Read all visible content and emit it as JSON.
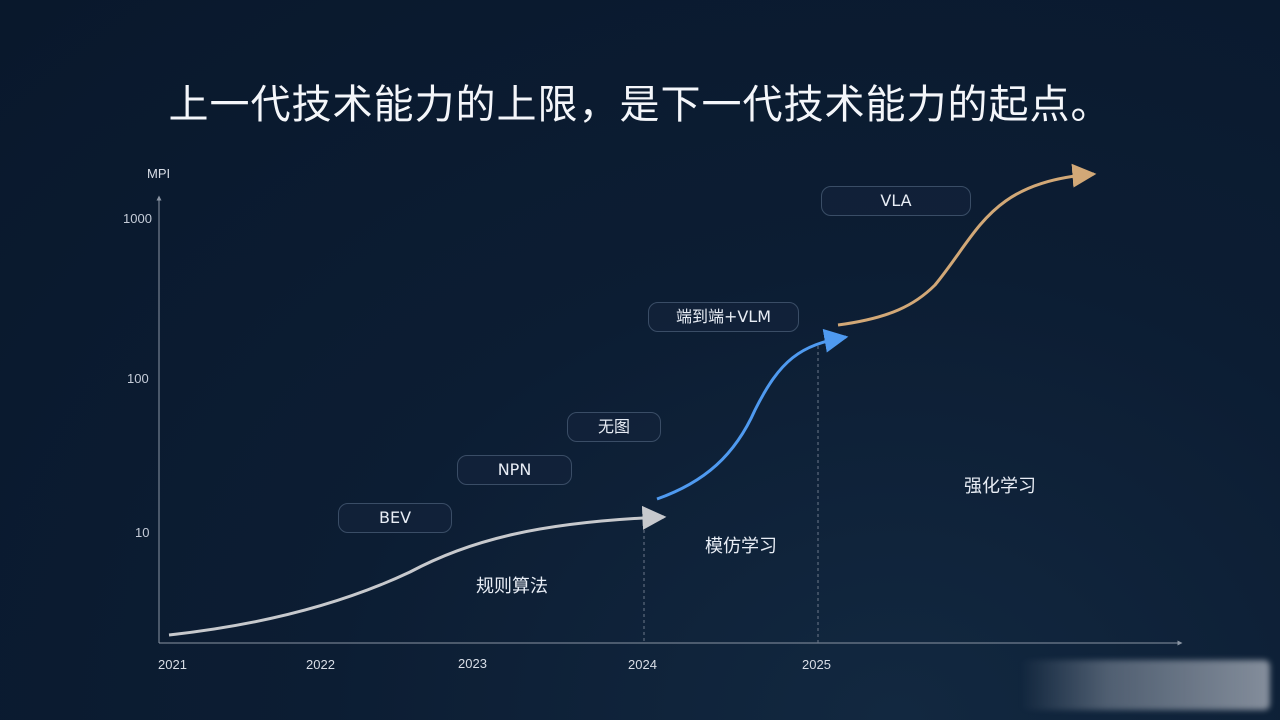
{
  "title": "上一代技术能力的上限，是下一代技术能力的起点。",
  "chart_data": {
    "type": "line",
    "ylabel": "MPI",
    "y_scale": "log",
    "y_ticks": [
      "1000",
      "100",
      "10"
    ],
    "x_ticks": [
      "2021",
      "2022",
      "2023",
      "2024",
      "2025"
    ],
    "series": [
      {
        "color": "#c7c9cd",
        "phase_label": "规则算法",
        "milestones": [
          "BEV",
          "NPN",
          "无图"
        ],
        "x_range": [
          2021,
          2024.1
        ],
        "y_range": [
          2.2,
          13
        ]
      },
      {
        "color": "#4f9af0",
        "phase_label": "模仿学习",
        "milestones": [
          "端到端+VLM"
        ],
        "x_range": [
          2024.1,
          2025.2
        ],
        "y_range": [
          16,
          185
        ]
      },
      {
        "color": "#d2a877",
        "phase_label": "强化学习",
        "milestones": [
          "VLA"
        ],
        "x_range": [
          2025.2,
          2026.6
        ],
        "y_range": [
          210,
          1500
        ]
      }
    ]
  },
  "labels": {
    "milestone_bev": "BEV",
    "milestone_npn": "NPN",
    "milestone_wutu": "无图",
    "milestone_e2e": "端到端+VLM",
    "milestone_vla": "VLA",
    "phase_rules": "规则算法",
    "phase_imitation": "模仿学习",
    "phase_rl": "强化学习"
  },
  "colors": {
    "background": "#0c1d33",
    "axis": "#8a94a3",
    "rules_curve": "#c7c9cd",
    "imitation_curve": "#4f9af0",
    "rl_curve": "#d2a877"
  }
}
